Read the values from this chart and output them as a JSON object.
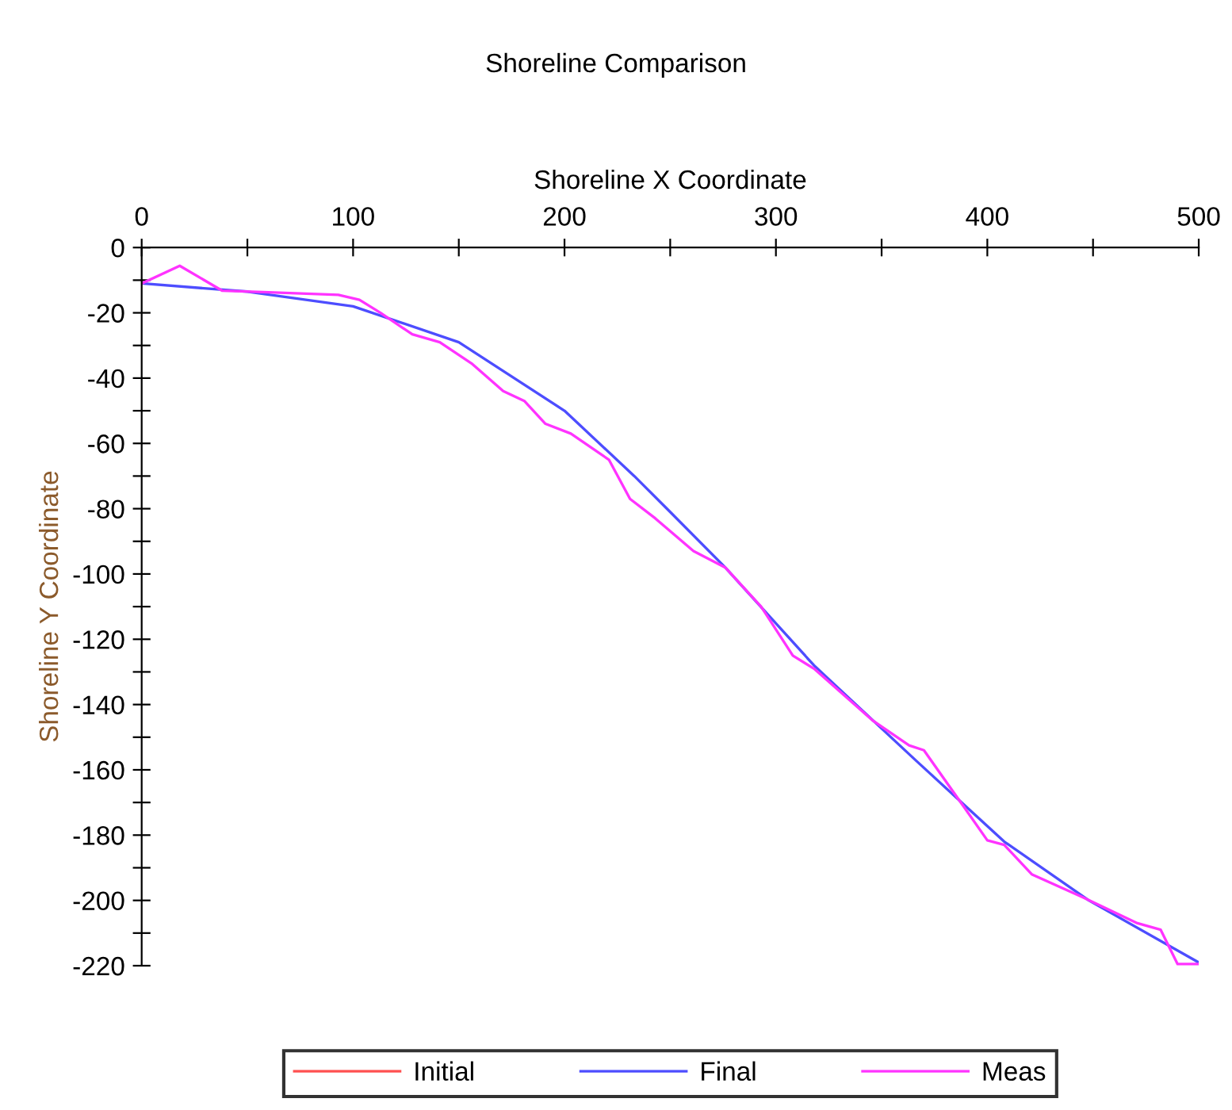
{
  "chart_data": {
    "type": "line",
    "title": "Shoreline Comparison",
    "xlabel": "Shoreline X Coordinate",
    "ylabel": "Shoreline Y Coordinate",
    "xlim": [
      0,
      500
    ],
    "ylim": [
      -220,
      0
    ],
    "xticks": [
      0,
      {
        "value": 50,
        "label": null
      },
      100,
      {
        "value": 150,
        "label": null
      },
      200,
      {
        "value": 250,
        "label": null
      },
      300,
      {
        "value": 350,
        "label": null
      },
      400,
      {
        "value": 450,
        "label": null
      },
      500
    ],
    "yticks": [
      0,
      {
        "value": -10,
        "label": null
      },
      -20,
      {
        "value": -30,
        "label": null
      },
      -40,
      {
        "value": -50,
        "label": null
      },
      -60,
      {
        "value": -70,
        "label": null
      },
      -80,
      {
        "value": -90,
        "label": null
      },
      -100,
      {
        "value": -110,
        "label": null
      },
      -120,
      {
        "value": -130,
        "label": null
      },
      -140,
      {
        "value": -150,
        "label": null
      },
      -160,
      {
        "value": -170,
        "label": null
      },
      -180,
      {
        "value": -190,
        "label": null
      },
      -200,
      {
        "value": -210,
        "label": null
      },
      -220
    ],
    "grid": false,
    "legend": "bottom",
    "marker": "none",
    "line_style": "solid",
    "series": [
      {
        "name": "Initial",
        "color": "#ff5050"
      },
      {
        "name": "Final",
        "color": "#4d4dff",
        "x": [
          0,
          50,
          100,
          150,
          200,
          233,
          250,
          276,
          318,
          366,
          408,
          448,
          500
        ],
        "values": [
          -11,
          -13.5,
          -18,
          -29,
          -50,
          -70,
          -81,
          -98,
          -128,
          -157,
          -182,
          -200,
          -219
        ]
      },
      {
        "name": "Meas",
        "color": "#ff33ff",
        "x": [
          0,
          18,
          38,
          60,
          93,
          103,
          113,
          128,
          141,
          156,
          171,
          181,
          191,
          203,
          221,
          231,
          243,
          261,
          276,
          293,
          308,
          318,
          346,
          363,
          370,
          388,
          400,
          408,
          421,
          445,
          471,
          482,
          490,
          500
        ],
        "values": [
          -11,
          -5.6,
          -13.2,
          -13.7,
          -14.5,
          -16,
          -20,
          -26.6,
          -29,
          -35.5,
          -44,
          -47,
          -54,
          -57,
          -65,
          -77,
          -83,
          -93,
          -98,
          -110,
          -125,
          -129,
          -145,
          -152.5,
          -154,
          -170.5,
          -181.6,
          -183,
          -192,
          -199,
          -207,
          -209,
          -219.5,
          -219.5
        ]
      }
    ]
  }
}
